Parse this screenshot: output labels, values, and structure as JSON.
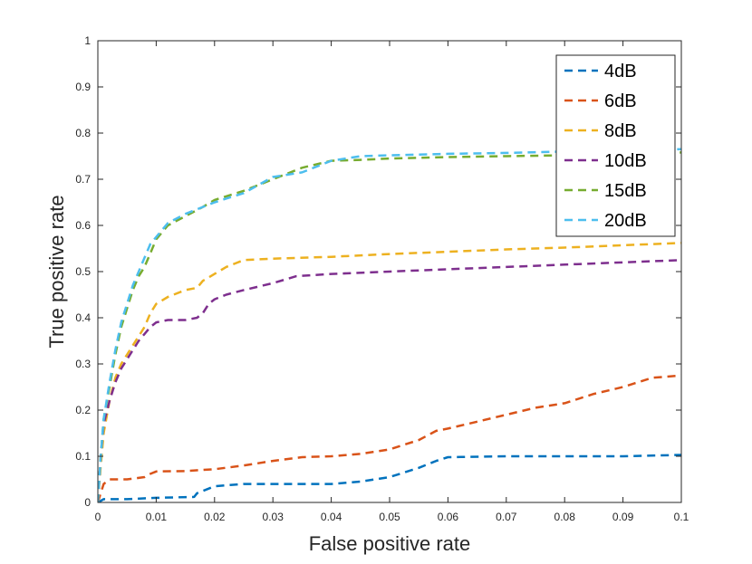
{
  "chart_data": {
    "type": "line",
    "title": "",
    "xlabel": "False positive rate",
    "ylabel": "True positive rate",
    "xlim": [
      0,
      0.1
    ],
    "ylim": [
      0,
      1
    ],
    "x_ticks": [
      0,
      0.01,
      0.02,
      0.03,
      0.04,
      0.05,
      0.06,
      0.07,
      0.08,
      0.09,
      0.1
    ],
    "x_tick_labels": [
      "0",
      "0.01",
      "0.02",
      "0.03",
      "0.04",
      "0.05",
      "0.06",
      "0.07",
      "0.08",
      "0.09",
      "0.1"
    ],
    "y_ticks": [
      0,
      0.1,
      0.2,
      0.3,
      0.4,
      0.5,
      0.6,
      0.7,
      0.8,
      0.9,
      1
    ],
    "y_tick_labels": [
      "0",
      "0.1",
      "0.2",
      "0.3",
      "0.4",
      "0.5",
      "0.6",
      "0.7",
      "0.8",
      "0.9",
      "1"
    ],
    "grid": false,
    "legend_position": "top-right",
    "line_style": "dashed",
    "series": [
      {
        "name": "4dB",
        "color": "#0072BD",
        "x": [
          0,
          0.001,
          0.005,
          0.01,
          0.0165,
          0.017,
          0.019,
          0.02,
          0.025,
          0.035,
          0.04,
          0.045,
          0.05,
          0.055,
          0.058,
          0.06,
          0.07,
          0.08,
          0.09,
          0.1
        ],
        "y": [
          0,
          0.007,
          0.007,
          0.01,
          0.012,
          0.02,
          0.03,
          0.035,
          0.04,
          0.04,
          0.04,
          0.045,
          0.055,
          0.075,
          0.09,
          0.098,
          0.1,
          0.1,
          0.1,
          0.103
        ]
      },
      {
        "name": "6dB",
        "color": "#D95319",
        "x": [
          0,
          0.0005,
          0.001,
          0.002,
          0.005,
          0.008,
          0.009,
          0.01,
          0.015,
          0.02,
          0.025,
          0.03,
          0.035,
          0.04,
          0.045,
          0.05,
          0.055,
          0.058,
          0.06,
          0.065,
          0.07,
          0.075,
          0.08,
          0.085,
          0.09,
          0.095,
          0.1
        ],
        "y": [
          0,
          0.02,
          0.04,
          0.05,
          0.05,
          0.055,
          0.062,
          0.067,
          0.068,
          0.072,
          0.08,
          0.09,
          0.098,
          0.1,
          0.105,
          0.115,
          0.135,
          0.155,
          0.16,
          0.175,
          0.19,
          0.205,
          0.215,
          0.235,
          0.25,
          0.27,
          0.275
        ]
      },
      {
        "name": "8dB",
        "color": "#EDB120",
        "x": [
          0,
          0.0005,
          0.001,
          0.002,
          0.003,
          0.004,
          0.005,
          0.006,
          0.007,
          0.008,
          0.009,
          0.01,
          0.012,
          0.015,
          0.017,
          0.018,
          0.02,
          0.022,
          0.025,
          0.03,
          0.04,
          0.05,
          0.06,
          0.07,
          0.08,
          0.09,
          0.1
        ],
        "y": [
          0,
          0.08,
          0.15,
          0.22,
          0.27,
          0.3,
          0.32,
          0.34,
          0.36,
          0.38,
          0.41,
          0.43,
          0.445,
          0.46,
          0.465,
          0.48,
          0.495,
          0.51,
          0.525,
          0.528,
          0.532,
          0.538,
          0.543,
          0.548,
          0.552,
          0.557,
          0.562
        ]
      },
      {
        "name": "10dB",
        "color": "#7E2F8E",
        "x": [
          0,
          0.0005,
          0.001,
          0.002,
          0.003,
          0.004,
          0.005,
          0.006,
          0.007,
          0.008,
          0.009,
          0.01,
          0.012,
          0.015,
          0.017,
          0.018,
          0.019,
          0.02,
          0.022,
          0.025,
          0.03,
          0.034,
          0.04,
          0.05,
          0.06,
          0.07,
          0.08,
          0.09,
          0.1
        ],
        "y": [
          0,
          0.1,
          0.17,
          0.22,
          0.26,
          0.29,
          0.31,
          0.33,
          0.35,
          0.365,
          0.38,
          0.39,
          0.395,
          0.395,
          0.4,
          0.41,
          0.43,
          0.44,
          0.45,
          0.46,
          0.475,
          0.49,
          0.495,
          0.5,
          0.505,
          0.51,
          0.515,
          0.52,
          0.525
        ]
      },
      {
        "name": "15dB",
        "color": "#77AC30",
        "x": [
          0,
          0.0005,
          0.001,
          0.002,
          0.003,
          0.004,
          0.005,
          0.006,
          0.007,
          0.008,
          0.009,
          0.01,
          0.011,
          0.012,
          0.015,
          0.018,
          0.02,
          0.025,
          0.03,
          0.035,
          0.04,
          0.045,
          0.05,
          0.06,
          0.07,
          0.08,
          0.09,
          0.1
        ],
        "y": [
          0,
          0.1,
          0.18,
          0.25,
          0.32,
          0.38,
          0.42,
          0.46,
          0.49,
          0.51,
          0.54,
          0.57,
          0.585,
          0.6,
          0.62,
          0.64,
          0.655,
          0.675,
          0.7,
          0.725,
          0.74,
          0.742,
          0.745,
          0.748,
          0.75,
          0.752,
          0.755,
          0.758
        ]
      },
      {
        "name": "20dB",
        "color": "#4DBEEE",
        "x": [
          0,
          0.0005,
          0.001,
          0.002,
          0.003,
          0.004,
          0.005,
          0.006,
          0.007,
          0.008,
          0.009,
          0.01,
          0.011,
          0.012,
          0.015,
          0.018,
          0.02,
          0.025,
          0.03,
          0.035,
          0.04,
          0.045,
          0.05,
          0.06,
          0.07,
          0.08,
          0.09,
          0.1
        ],
        "y": [
          0,
          0.1,
          0.18,
          0.26,
          0.33,
          0.39,
          0.43,
          0.47,
          0.5,
          0.53,
          0.56,
          0.575,
          0.59,
          0.605,
          0.625,
          0.64,
          0.65,
          0.67,
          0.705,
          0.715,
          0.74,
          0.75,
          0.752,
          0.755,
          0.757,
          0.76,
          0.762,
          0.765
        ]
      }
    ]
  }
}
